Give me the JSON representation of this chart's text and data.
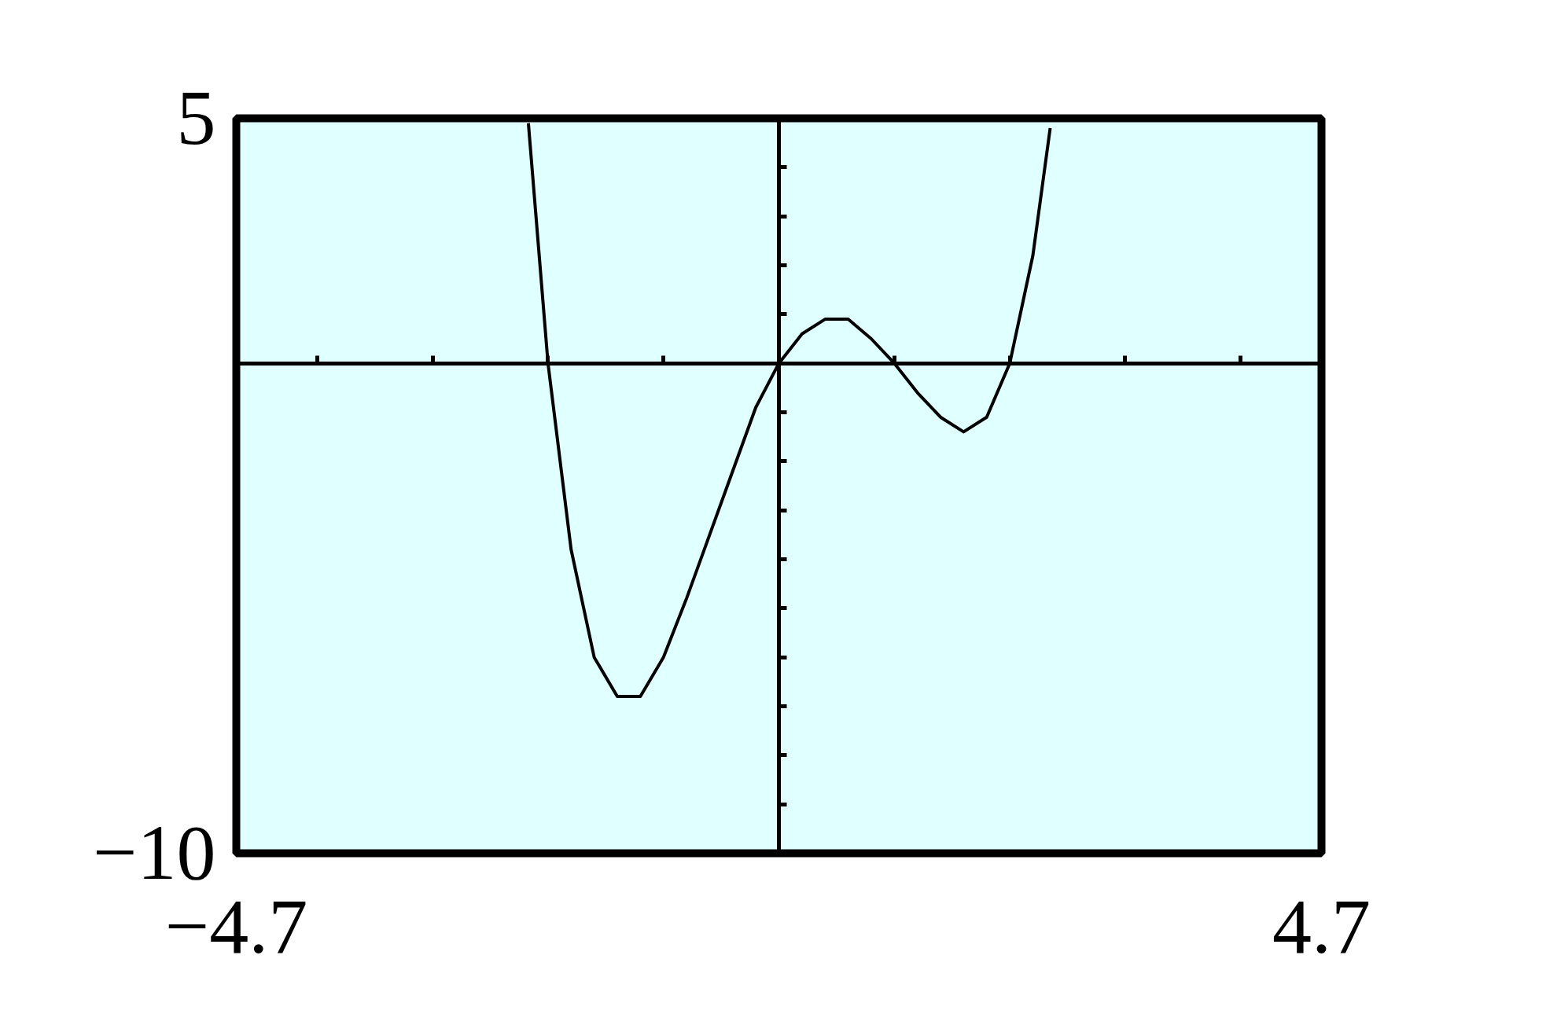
{
  "chart_data": {
    "type": "line",
    "x": [
      -2.17,
      -2.0,
      -1.8,
      -1.6,
      -1.4,
      -1.2,
      -1.0,
      -0.8,
      -0.6,
      -0.4,
      -0.2,
      0,
      0.2,
      0.4,
      0.6,
      0.8,
      1.0,
      1.2,
      1.4,
      1.6,
      1.8,
      2.0,
      2.2,
      2.35
    ],
    "series": [
      {
        "color": "#000000",
        "values": [
          4.9,
          0,
          -3.8,
          -6.0,
          -6.8,
          -6.8,
          -6.0,
          -4.8,
          -3.5,
          -2.2,
          -0.9,
          0,
          0.6,
          0.9,
          0.9,
          0.5,
          0,
          -0.6,
          -1.1,
          -1.4,
          -1.1,
          0,
          2.2,
          4.8
        ]
      }
    ],
    "xlim": [
      -4.7,
      4.7
    ],
    "ylim": [
      -10,
      5
    ],
    "xticks": [
      {
        "value": -4.7,
        "label": "−4.7"
      },
      {
        "value": -4,
        "label": null
      },
      {
        "value": -3,
        "label": null
      },
      {
        "value": -2,
        "label": null
      },
      {
        "value": -1,
        "label": null
      },
      {
        "value": 1,
        "label": null
      },
      {
        "value": 2,
        "label": null
      },
      {
        "value": 3,
        "label": null
      },
      {
        "value": 4,
        "label": null
      },
      {
        "value": 4.7,
        "label": "4.7"
      }
    ],
    "yticks": [
      {
        "value": -10,
        "label": "−10"
      },
      {
        "value": -9,
        "label": null
      },
      {
        "value": -8,
        "label": null
      },
      {
        "value": -7,
        "label": null
      },
      {
        "value": -6,
        "label": null
      },
      {
        "value": -5,
        "label": null
      },
      {
        "value": -4,
        "label": null
      },
      {
        "value": -3,
        "label": null
      },
      {
        "value": -2,
        "label": null
      },
      {
        "value": -1,
        "label": null
      },
      {
        "value": 1,
        "label": null
      },
      {
        "value": 2,
        "label": null
      },
      {
        "value": 3,
        "label": null
      },
      {
        "value": 4,
        "label": null
      },
      {
        "value": 5,
        "label": "5"
      }
    ],
    "marker": "none",
    "line_style": "solid"
  }
}
